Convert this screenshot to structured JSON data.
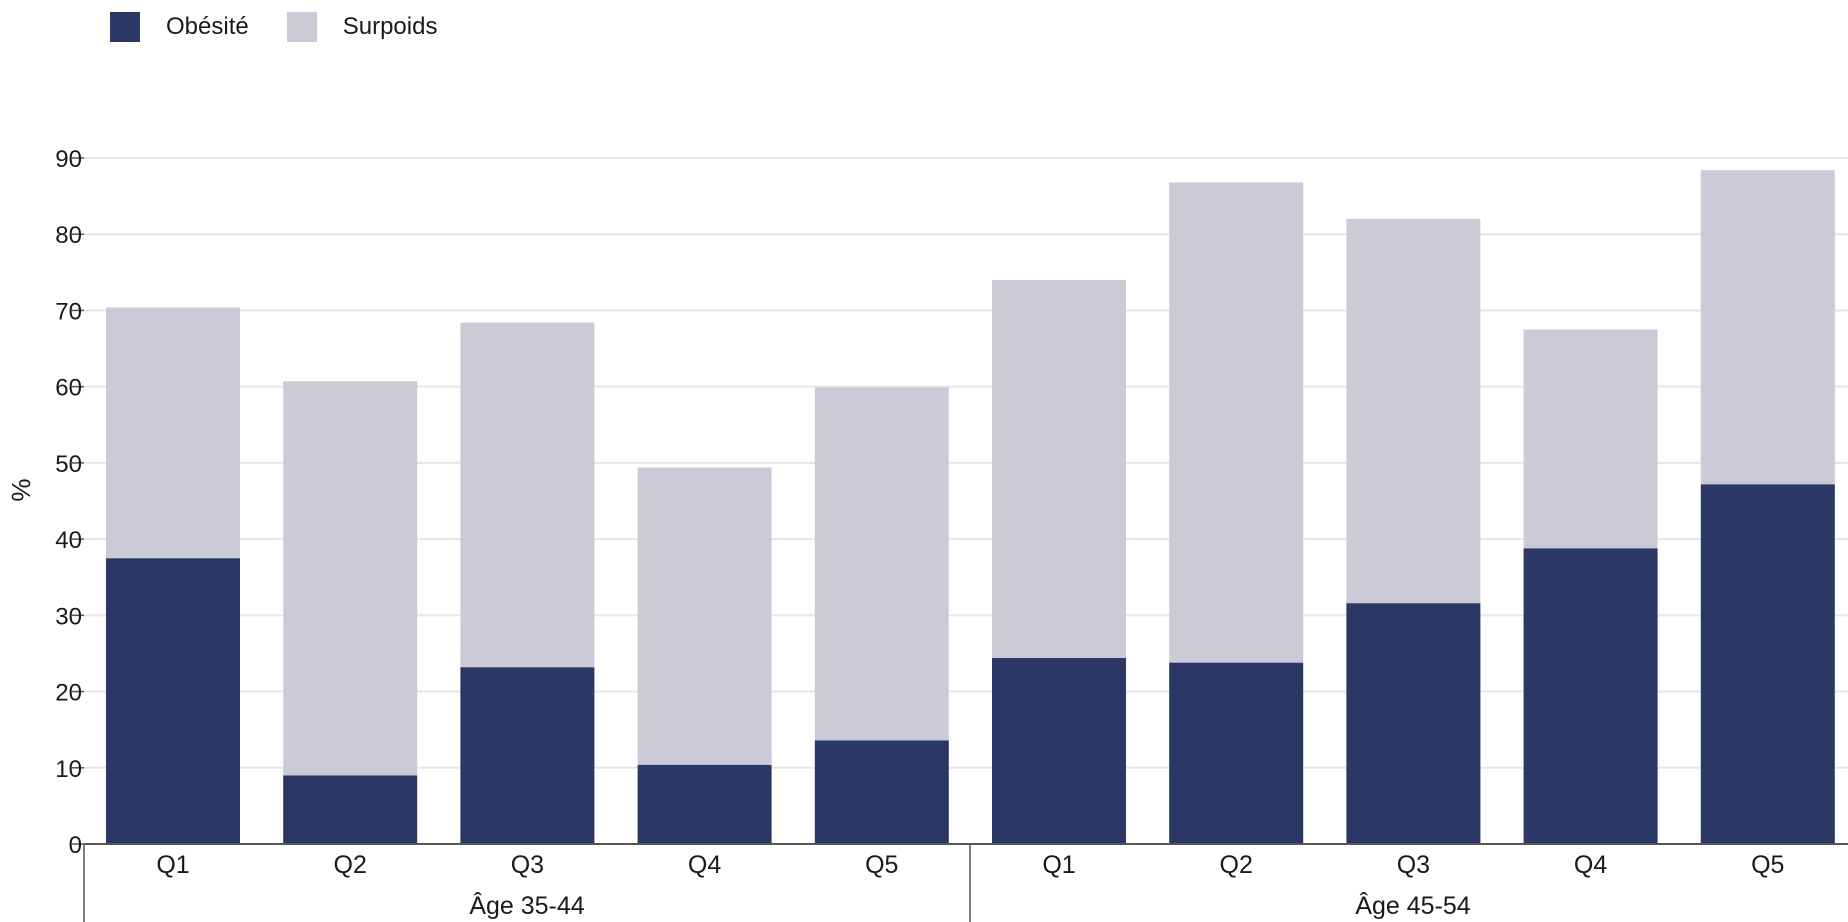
{
  "chart_data": {
    "type": "bar",
    "stacked": true,
    "ylabel": "%",
    "ylim": [
      0,
      90
    ],
    "yticks": [
      0,
      10,
      20,
      30,
      40,
      50,
      60,
      70,
      80,
      90
    ],
    "grid": true,
    "legend_position": "top-left",
    "groups": [
      {
        "label": "Âge 35-44",
        "categories": [
          "Q1",
          "Q2",
          "Q3",
          "Q4",
          "Q5"
        ]
      },
      {
        "label": "Âge 45-54",
        "categories": [
          "Q1",
          "Q2",
          "Q3",
          "Q4",
          "Q5"
        ]
      }
    ],
    "series": [
      {
        "name": "Obésité",
        "color": "#2b3764",
        "values": [
          37.5,
          9.0,
          23.2,
          10.4,
          13.6,
          24.4,
          23.8,
          31.6,
          38.8,
          47.2
        ]
      },
      {
        "name": "Surpoids",
        "color": "#cacbd7",
        "values": [
          32.9,
          51.7,
          45.2,
          39.0,
          46.3,
          49.6,
          63.0,
          50.4,
          28.7,
          41.2
        ]
      }
    ]
  }
}
